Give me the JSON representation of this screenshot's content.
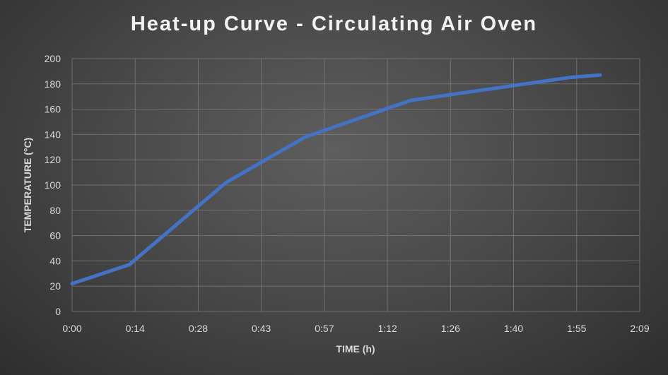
{
  "chart_data": {
    "type": "line",
    "title": "Heat-up Curve - Circulating Air Oven",
    "xlabel": "TIME (h)",
    "ylabel": "TEMPERATURE (°C)",
    "xlim": [
      "0:00",
      "2:09"
    ],
    "xlim_minutes": [
      0,
      129
    ],
    "ylim": [
      0,
      200
    ],
    "x_tick_labels": [
      "0:00",
      "0:14",
      "0:28",
      "0:43",
      "0:57",
      "1:12",
      "1:26",
      "1:40",
      "1:55",
      "2:09"
    ],
    "y_tick_labels": [
      "0",
      "20",
      "40",
      "60",
      "80",
      "100",
      "120",
      "140",
      "160",
      "180",
      "200"
    ],
    "grid": true,
    "legend": "none",
    "series": [
      {
        "color": "#4472C4",
        "x": [
          "0:00",
          "0:13",
          "0:35",
          "0:53",
          "1:17",
          "1:53",
          "2:00"
        ],
        "x_minutes": [
          0,
          13,
          35,
          53,
          77,
          113,
          120
        ],
        "y": [
          22,
          37,
          102,
          138,
          167,
          185,
          187
        ]
      }
    ]
  }
}
